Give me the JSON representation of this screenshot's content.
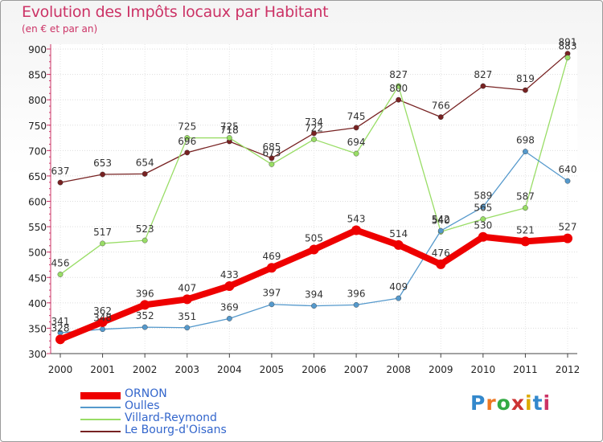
{
  "chart_data": {
    "type": "line",
    "title": "Evolution des Impôts locaux par Habitant",
    "subtitle": "(en € et par an)",
    "x": [
      "2000",
      "2001",
      "2002",
      "2003",
      "2004",
      "2005",
      "2006",
      "2007",
      "2008",
      "2009",
      "2010",
      "2011",
      "2012"
    ],
    "ylim": [
      300,
      900
    ],
    "yticks": [
      300,
      350,
      400,
      450,
      500,
      550,
      600,
      650,
      700,
      750,
      800,
      850,
      900
    ],
    "grid": true,
    "series": [
      {
        "name": "ORNON",
        "color": "#ee0000",
        "bold": true,
        "values": [
          328,
          362,
          396,
          407,
          433,
          469,
          505,
          543,
          514,
          476,
          530,
          521,
          527
        ]
      },
      {
        "name": "Oulles",
        "color": "#5599cc",
        "bold": false,
        "values": [
          341,
          348,
          352,
          351,
          369,
          397,
          394,
          396,
          409,
          542,
          589,
          698,
          640
        ]
      },
      {
        "name": "Villard-Reymond",
        "color": "#99dd66",
        "bold": false,
        "values": [
          456,
          517,
          523,
          725,
          725,
          673,
          722,
          694,
          827,
          540,
          565,
          587,
          883
        ]
      },
      {
        "name": "Le Bourg-d'Oisans",
        "color": "#772222",
        "bold": false,
        "values": [
          637,
          653,
          654,
          696,
          718,
          685,
          734,
          745,
          800,
          766,
          827,
          819,
          891
        ]
      }
    ]
  },
  "logo": {
    "text": "Proxiti",
    "colors": [
      "#3388cc",
      "#ee7722",
      "#33aa44",
      "#cc3333",
      "#ddaa00",
      "#3388cc",
      "#cc3366"
    ]
  }
}
